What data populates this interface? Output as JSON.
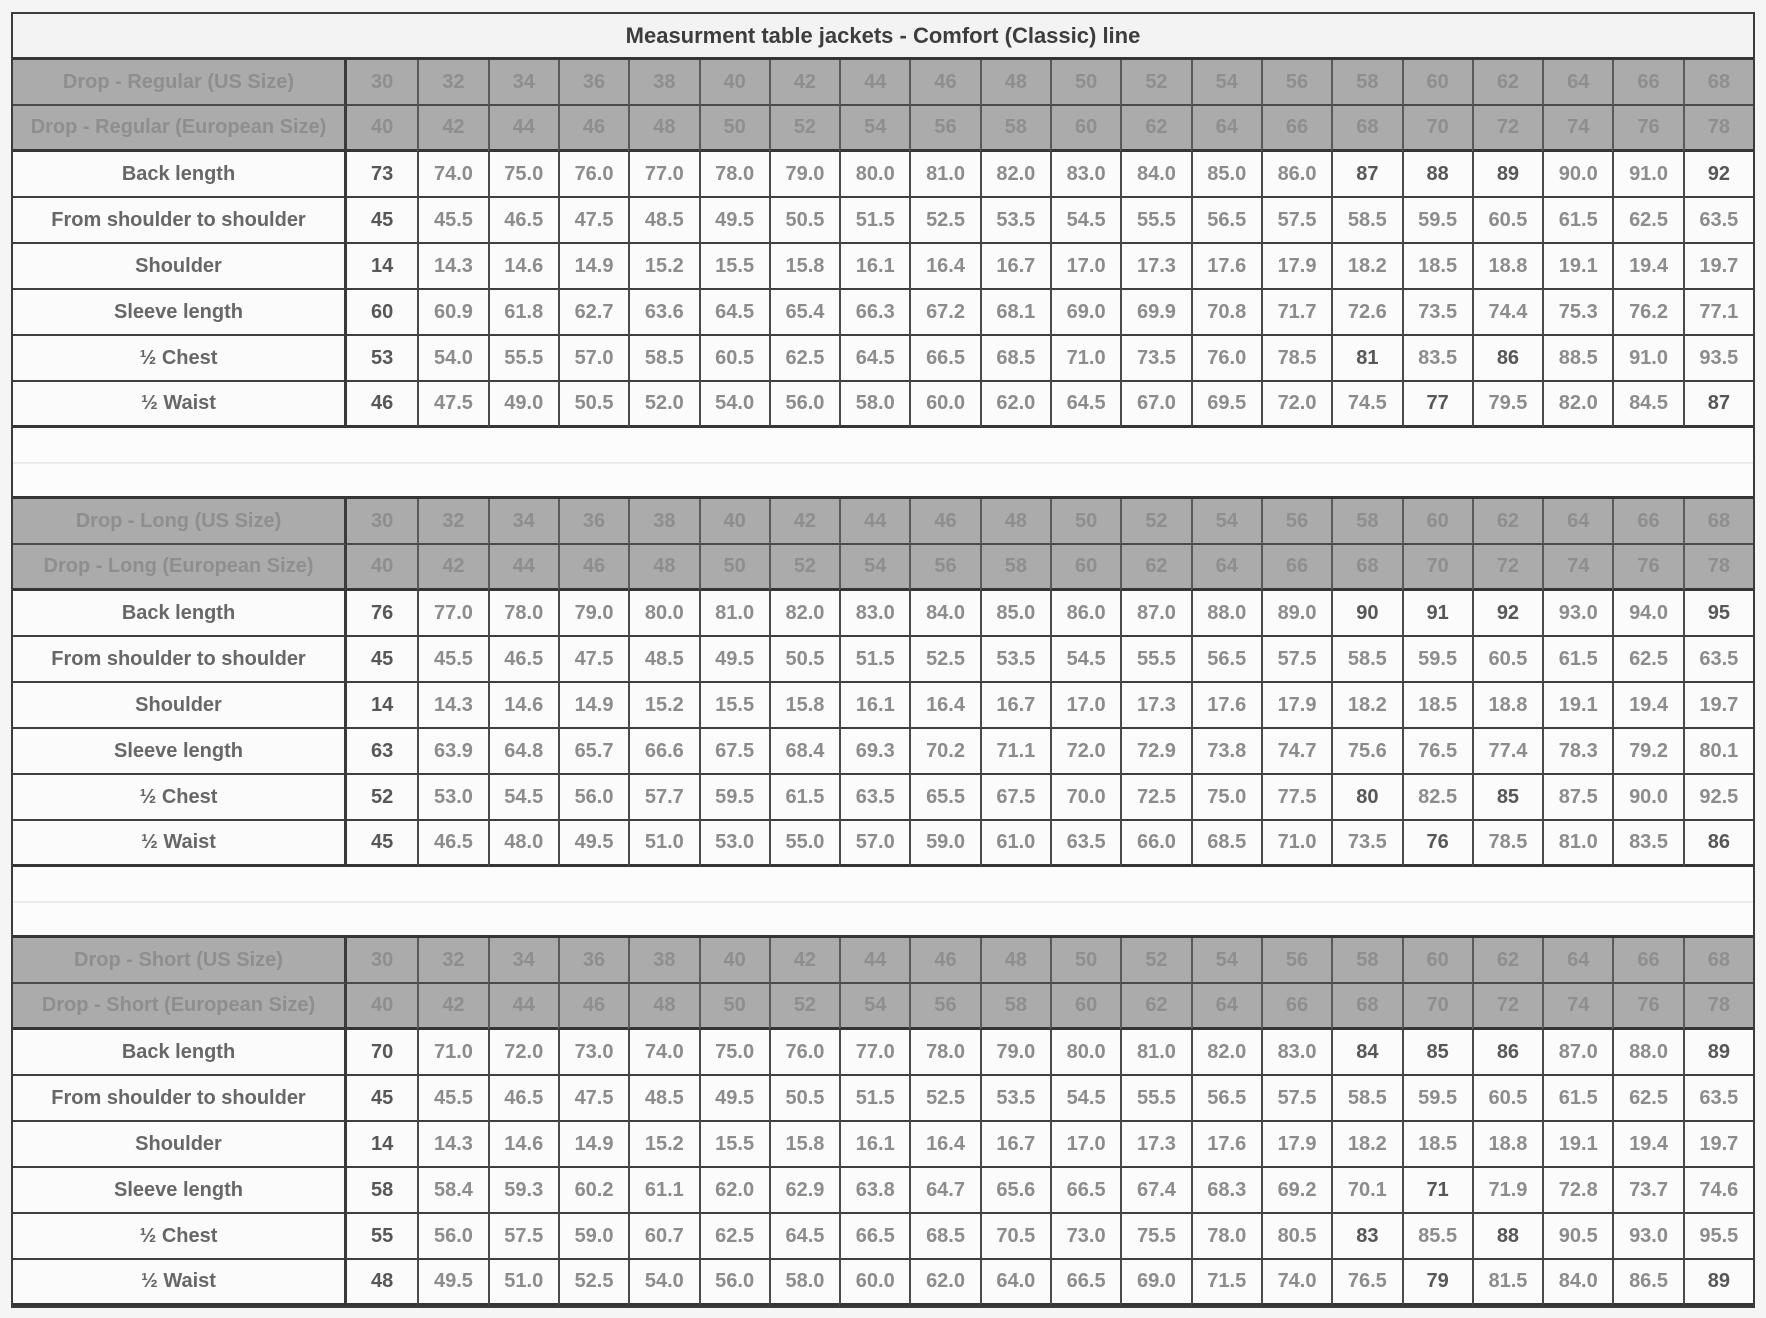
{
  "title": "Measurment table jackets - Comfort (Classic) line",
  "colors": {
    "header_bg": "#ababab",
    "header_text": "#8e8e8e",
    "title_text": "#3d3d3d",
    "row_label_text": "#676767",
    "value_decimal_text": "#8c8c8c",
    "value_integer_text": "#575757",
    "grid_border": "#3f3f3f",
    "body_bg": "#fbfbfb"
  },
  "sections": [
    {
      "id": "regular",
      "us_label": "Drop - Regular (US Size)",
      "eu_label": "Drop - Regular (European Size)",
      "us_sizes": [
        "30",
        "32",
        "34",
        "36",
        "38",
        "40",
        "42",
        "44",
        "46",
        "48",
        "50",
        "52",
        "54",
        "56",
        "58",
        "60",
        "62",
        "64",
        "66",
        "68"
      ],
      "eu_sizes": [
        "40",
        "42",
        "44",
        "46",
        "48",
        "50",
        "52",
        "54",
        "56",
        "58",
        "60",
        "62",
        "64",
        "66",
        "68",
        "70",
        "72",
        "74",
        "76",
        "78"
      ],
      "rows": [
        {
          "label": "Back length",
          "values": [
            "73",
            "74.0",
            "75.0",
            "76.0",
            "77.0",
            "78.0",
            "79.0",
            "80.0",
            "81.0",
            "82.0",
            "83.0",
            "84.0",
            "85.0",
            "86.0",
            "87",
            "88",
            "89",
            "90.0",
            "91.0",
            "92"
          ]
        },
        {
          "label": "From shoulder to shoulder",
          "values": [
            "45",
            "45.5",
            "46.5",
            "47.5",
            "48.5",
            "49.5",
            "50.5",
            "51.5",
            "52.5",
            "53.5",
            "54.5",
            "55.5",
            "56.5",
            "57.5",
            "58.5",
            "59.5",
            "60.5",
            "61.5",
            "62.5",
            "63.5"
          ]
        },
        {
          "label": "Shoulder",
          "values": [
            "14",
            "14.3",
            "14.6",
            "14.9",
            "15.2",
            "15.5",
            "15.8",
            "16.1",
            "16.4",
            "16.7",
            "17.0",
            "17.3",
            "17.6",
            "17.9",
            "18.2",
            "18.5",
            "18.8",
            "19.1",
            "19.4",
            "19.7"
          ]
        },
        {
          "label": "Sleeve length",
          "values": [
            "60",
            "60.9",
            "61.8",
            "62.7",
            "63.6",
            "64.5",
            "65.4",
            "66.3",
            "67.2",
            "68.1",
            "69.0",
            "69.9",
            "70.8",
            "71.7",
            "72.6",
            "73.5",
            "74.4",
            "75.3",
            "76.2",
            "77.1"
          ]
        },
        {
          "label": "½ Chest",
          "values": [
            "53",
            "54.0",
            "55.5",
            "57.0",
            "58.5",
            "60.5",
            "62.5",
            "64.5",
            "66.5",
            "68.5",
            "71.0",
            "73.5",
            "76.0",
            "78.5",
            "81",
            "83.5",
            "86",
            "88.5",
            "91.0",
            "93.5"
          ]
        },
        {
          "label": "½ Waist",
          "values": [
            "46",
            "47.5",
            "49.0",
            "50.5",
            "52.0",
            "54.0",
            "56.0",
            "58.0",
            "60.0",
            "62.0",
            "64.5",
            "67.0",
            "69.5",
            "72.0",
            "74.5",
            "77",
            "79.5",
            "82.0",
            "84.5",
            "87"
          ]
        }
      ]
    },
    {
      "id": "long",
      "us_label": "Drop - Long (US Size)",
      "eu_label": "Drop - Long (European Size)",
      "us_sizes": [
        "30",
        "32",
        "34",
        "36",
        "38",
        "40",
        "42",
        "44",
        "46",
        "48",
        "50",
        "52",
        "54",
        "56",
        "58",
        "60",
        "62",
        "64",
        "66",
        "68"
      ],
      "eu_sizes": [
        "40",
        "42",
        "44",
        "46",
        "48",
        "50",
        "52",
        "54",
        "56",
        "58",
        "60",
        "62",
        "64",
        "66",
        "68",
        "70",
        "72",
        "74",
        "76",
        "78"
      ],
      "rows": [
        {
          "label": "Back length",
          "values": [
            "76",
            "77.0",
            "78.0",
            "79.0",
            "80.0",
            "81.0",
            "82.0",
            "83.0",
            "84.0",
            "85.0",
            "86.0",
            "87.0",
            "88.0",
            "89.0",
            "90",
            "91",
            "92",
            "93.0",
            "94.0",
            "95"
          ]
        },
        {
          "label": "From shoulder to shoulder",
          "values": [
            "45",
            "45.5",
            "46.5",
            "47.5",
            "48.5",
            "49.5",
            "50.5",
            "51.5",
            "52.5",
            "53.5",
            "54.5",
            "55.5",
            "56.5",
            "57.5",
            "58.5",
            "59.5",
            "60.5",
            "61.5",
            "62.5",
            "63.5"
          ]
        },
        {
          "label": "Shoulder",
          "values": [
            "14",
            "14.3",
            "14.6",
            "14.9",
            "15.2",
            "15.5",
            "15.8",
            "16.1",
            "16.4",
            "16.7",
            "17.0",
            "17.3",
            "17.6",
            "17.9",
            "18.2",
            "18.5",
            "18.8",
            "19.1",
            "19.4",
            "19.7"
          ]
        },
        {
          "label": "Sleeve length",
          "values": [
            "63",
            "63.9",
            "64.8",
            "65.7",
            "66.6",
            "67.5",
            "68.4",
            "69.3",
            "70.2",
            "71.1",
            "72.0",
            "72.9",
            "73.8",
            "74.7",
            "75.6",
            "76.5",
            "77.4",
            "78.3",
            "79.2",
            "80.1"
          ]
        },
        {
          "label": "½ Chest",
          "values": [
            "52",
            "53.0",
            "54.5",
            "56.0",
            "57.7",
            "59.5",
            "61.5",
            "63.5",
            "65.5",
            "67.5",
            "70.0",
            "72.5",
            "75.0",
            "77.5",
            "80",
            "82.5",
            "85",
            "87.5",
            "90.0",
            "92.5"
          ]
        },
        {
          "label": "½ Waist",
          "values": [
            "45",
            "46.5",
            "48.0",
            "49.5",
            "51.0",
            "53.0",
            "55.0",
            "57.0",
            "59.0",
            "61.0",
            "63.5",
            "66.0",
            "68.5",
            "71.0",
            "73.5",
            "76",
            "78.5",
            "81.0",
            "83.5",
            "86"
          ]
        }
      ]
    },
    {
      "id": "short",
      "us_label": "Drop - Short (US Size)",
      "eu_label": "Drop - Short (European Size)",
      "us_sizes": [
        "30",
        "32",
        "34",
        "36",
        "38",
        "40",
        "42",
        "44",
        "46",
        "48",
        "50",
        "52",
        "54",
        "56",
        "58",
        "60",
        "62",
        "64",
        "66",
        "68"
      ],
      "eu_sizes": [
        "40",
        "42",
        "44",
        "46",
        "48",
        "50",
        "52",
        "54",
        "56",
        "58",
        "60",
        "62",
        "64",
        "66",
        "68",
        "70",
        "72",
        "74",
        "76",
        "78"
      ],
      "rows": [
        {
          "label": "Back length",
          "values": [
            "70",
            "71.0",
            "72.0",
            "73.0",
            "74.0",
            "75.0",
            "76.0",
            "77.0",
            "78.0",
            "79.0",
            "80.0",
            "81.0",
            "82.0",
            "83.0",
            "84",
            "85",
            "86",
            "87.0",
            "88.0",
            "89"
          ]
        },
        {
          "label": "From shoulder to shoulder",
          "values": [
            "45",
            "45.5",
            "46.5",
            "47.5",
            "48.5",
            "49.5",
            "50.5",
            "51.5",
            "52.5",
            "53.5",
            "54.5",
            "55.5",
            "56.5",
            "57.5",
            "58.5",
            "59.5",
            "60.5",
            "61.5",
            "62.5",
            "63.5"
          ]
        },
        {
          "label": "Shoulder",
          "values": [
            "14",
            "14.3",
            "14.6",
            "14.9",
            "15.2",
            "15.5",
            "15.8",
            "16.1",
            "16.4",
            "16.7",
            "17.0",
            "17.3",
            "17.6",
            "17.9",
            "18.2",
            "18.5",
            "18.8",
            "19.1",
            "19.4",
            "19.7"
          ]
        },
        {
          "label": "Sleeve length",
          "values": [
            "58",
            "58.4",
            "59.3",
            "60.2",
            "61.1",
            "62.0",
            "62.9",
            "63.8",
            "64.7",
            "65.6",
            "66.5",
            "67.4",
            "68.3",
            "69.2",
            "70.1",
            "71",
            "71.9",
            "72.8",
            "73.7",
            "74.6"
          ]
        },
        {
          "label": "½ Chest",
          "values": [
            "55",
            "56.0",
            "57.5",
            "59.0",
            "60.7",
            "62.5",
            "64.5",
            "66.5",
            "68.5",
            "70.5",
            "73.0",
            "75.5",
            "78.0",
            "80.5",
            "83",
            "85.5",
            "88",
            "90.5",
            "93.0",
            "95.5"
          ]
        },
        {
          "label": "½ Waist",
          "values": [
            "48",
            "49.5",
            "51.0",
            "52.5",
            "54.0",
            "56.0",
            "58.0",
            "60.0",
            "62.0",
            "64.0",
            "66.5",
            "69.0",
            "71.5",
            "74.0",
            "76.5",
            "79",
            "81.5",
            "84.0",
            "86.5",
            "89"
          ]
        }
      ]
    }
  ]
}
